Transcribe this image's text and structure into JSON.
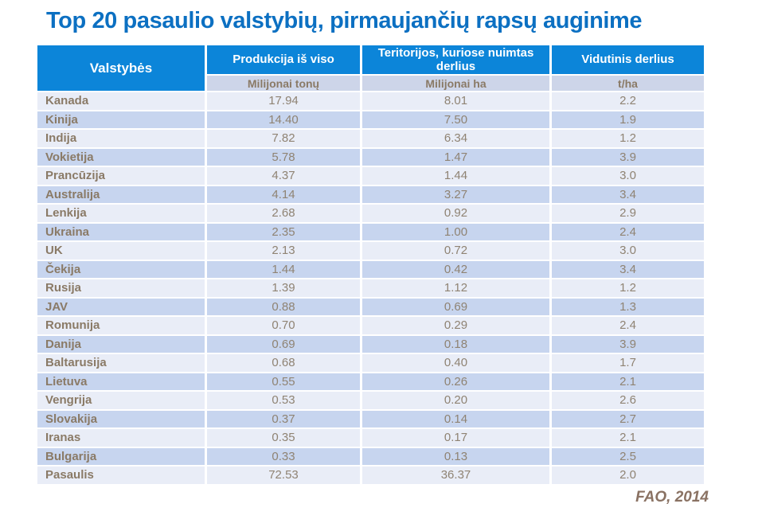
{
  "title": "Top 20 pasaulio valstybių, pirmaujančių rapsų auginime",
  "source": "FAO, 2014",
  "table": {
    "col1_header": "Valstybės",
    "columns": [
      {
        "label": "Produkcija iš viso",
        "unit": "Milijonai tonų"
      },
      {
        "label": "Teritorijos, kuriose nuimtas derlius",
        "unit": "Milijonai ha"
      },
      {
        "label": "Vidutinis derlius",
        "unit": "t/ha"
      }
    ],
    "rows": [
      {
        "country": "Kanada",
        "production": "17.94",
        "area": "8.01",
        "yield": "2.2"
      },
      {
        "country": "Kinija",
        "production": "14.40",
        "area": "7.50",
        "yield": "1.9"
      },
      {
        "country": "Indija",
        "production": "7.82",
        "area": "6.34",
        "yield": "1.2"
      },
      {
        "country": "Vokietija",
        "production": "5.78",
        "area": "1.47",
        "yield": "3.9"
      },
      {
        "country": "Prancūzija",
        "production": "4.37",
        "area": "1.44",
        "yield": "3.0"
      },
      {
        "country": "Australija",
        "production": "4.14",
        "area": "3.27",
        "yield": "3.4"
      },
      {
        "country": "Lenkija",
        "production": "2.68",
        "area": "0.92",
        "yield": "2.9"
      },
      {
        "country": "Ukraina",
        "production": "2.35",
        "area": "1.00",
        "yield": "2.4"
      },
      {
        "country": "UK",
        "production": "2.13",
        "area": "0.72",
        "yield": "3.0"
      },
      {
        "country": "Čekija",
        "production": "1.44",
        "area": "0.42",
        "yield": "3.4"
      },
      {
        "country": "Rusija",
        "production": "1.39",
        "area": "1.12",
        "yield": "1.2"
      },
      {
        "country": "JAV",
        "production": "0.88",
        "area": "0.69",
        "yield": "1.3"
      },
      {
        "country": "Romunija",
        "production": "0.70",
        "area": "0.29",
        "yield": "2.4"
      },
      {
        "country": "Danija",
        "production": "0.69",
        "area": "0.18",
        "yield": "3.9"
      },
      {
        "country": "Baltarusija",
        "production": "0.68",
        "area": "0.40",
        "yield": "1.7"
      },
      {
        "country": "Lietuva",
        "production": "0.55",
        "area": "0.26",
        "yield": "2.1"
      },
      {
        "country": "Vengrija",
        "production": "0.53",
        "area": "0.20",
        "yield": "2.6"
      },
      {
        "country": "Slovakija",
        "production": "0.37",
        "area": "0.14",
        "yield": "2.7"
      },
      {
        "country": "Iranas",
        "production": "0.35",
        "area": "0.17",
        "yield": "2.1"
      },
      {
        "country": "Bulgarija",
        "production": "0.33",
        "area": "0.13",
        "yield": "2.5"
      },
      {
        "country": "Pasaulis",
        "production": "72.53",
        "area": "36.37",
        "yield": "2.0"
      }
    ]
  },
  "chart_data": {
    "type": "table",
    "title": "Top 20 pasaulio valstybių, pirmaujančių rapsų auginime",
    "columns": [
      "Valstybės",
      "Produkcija iš viso (Milijonai tonų)",
      "Teritorijos, kuriose nuimtas derlius (Milijonai ha)",
      "Vidutinis derlius (t/ha)"
    ],
    "rows": [
      [
        "Kanada",
        17.94,
        8.01,
        2.2
      ],
      [
        "Kinija",
        14.4,
        7.5,
        1.9
      ],
      [
        "Indija",
        7.82,
        6.34,
        1.2
      ],
      [
        "Vokietija",
        5.78,
        1.47,
        3.9
      ],
      [
        "Prancūzija",
        4.37,
        1.44,
        3.0
      ],
      [
        "Australija",
        4.14,
        3.27,
        3.4
      ],
      [
        "Lenkija",
        2.68,
        0.92,
        2.9
      ],
      [
        "Ukraina",
        2.35,
        1.0,
        2.4
      ],
      [
        "UK",
        2.13,
        0.72,
        3.0
      ],
      [
        "Čekija",
        1.44,
        0.42,
        3.4
      ],
      [
        "Rusija",
        1.39,
        1.12,
        1.2
      ],
      [
        "JAV",
        0.88,
        0.69,
        1.3
      ],
      [
        "Romunija",
        0.7,
        0.29,
        2.4
      ],
      [
        "Danija",
        0.69,
        0.18,
        3.9
      ],
      [
        "Baltarusija",
        0.68,
        0.4,
        1.7
      ],
      [
        "Lietuva",
        0.55,
        0.26,
        2.1
      ],
      [
        "Vengrija",
        0.53,
        0.2,
        2.6
      ],
      [
        "Slovakija",
        0.37,
        0.14,
        2.7
      ],
      [
        "Iranas",
        0.35,
        0.17,
        2.1
      ],
      [
        "Bulgarija",
        0.33,
        0.13,
        2.5
      ],
      [
        "Pasaulis",
        72.53,
        36.37,
        2.0
      ]
    ],
    "source": "FAO, 2014"
  },
  "colors": {
    "title_blue": "#0C70C2",
    "header_blue": "#0C85D9",
    "units_bg": "#CDD5E9",
    "band_light": "#E9EDF7",
    "band_dark": "#C7D5EF",
    "text_brown": "#8A7A66",
    "num_brown": "#8F8373",
    "source_brown": "#8A7263"
  }
}
